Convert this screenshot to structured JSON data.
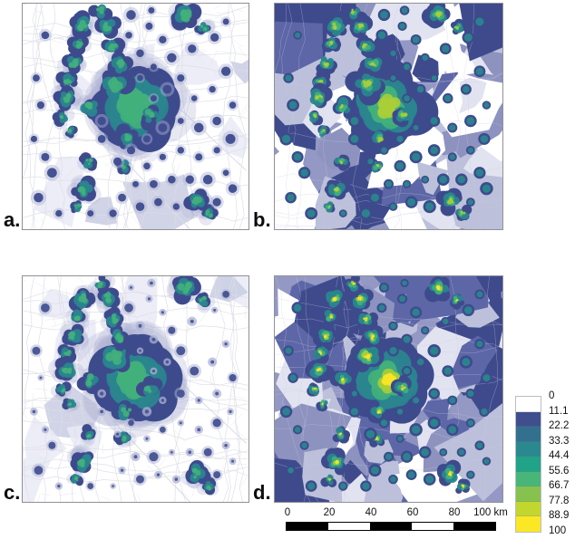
{
  "figure_type": "four-panel density map comparison",
  "panels": [
    {
      "id": "a",
      "label": "a.",
      "basemap": "roads",
      "point_style": "dark",
      "max_level": 3,
      "seed": 11
    },
    {
      "id": "b",
      "label": "b.",
      "basemap": "choropleth",
      "point_style": "ringed",
      "max_level": 4,
      "seed": 23
    },
    {
      "id": "c",
      "label": "c.",
      "basemap": "roads",
      "point_style": "faint",
      "max_level": 3,
      "seed": 37
    },
    {
      "id": "d",
      "label": "d.",
      "basemap": "choropleth",
      "point_style": "ringed",
      "max_level": 5,
      "seed": 47
    }
  ],
  "legend": {
    "labels": [
      "0",
      "11.1",
      "22.2",
      "33.3",
      "44.4",
      "55.6",
      "66.7",
      "77.8",
      "88.9",
      "100"
    ],
    "colors": [
      "#ffffff",
      "#3f4e8c",
      "#33708e",
      "#29898e",
      "#20a386",
      "#48b679",
      "#86c24d",
      "#c3d62e",
      "#fbe723"
    ]
  },
  "scalebar": {
    "tick_labels": [
      "0",
      "20",
      "40",
      "60",
      "80"
    ],
    "end_label": "100 km",
    "segment_colors": [
      "#000000",
      "#ffffff",
      "#000000",
      "#ffffff",
      "#000000"
    ]
  },
  "colors": {
    "halo": "#aeb2d4",
    "level1": "#3d4b8d",
    "level2": "#2a858e",
    "level3": "#43b07b",
    "level4": "#aace39",
    "level5": "#f6e626",
    "road": "#dcdde6",
    "poly_light": "#e9eaf4",
    "poly_mid": "#c9cce2",
    "choropleth_base": "#9398c4",
    "choropleth_palette": [
      "#ffffff",
      "#e2e3f0",
      "#bcc0da",
      "#8d92bf",
      "#5d66a6",
      "#3e4a8c"
    ],
    "tract_line": "#c9cbdf",
    "frame": "#909097"
  },
  "map_features": {
    "clusters_xyrn": [
      [
        0.5,
        0.46,
        0.16,
        34
      ],
      [
        0.405,
        0.355,
        0.07,
        9
      ],
      [
        0.565,
        0.495,
        0.05,
        5
      ],
      [
        0.46,
        0.6,
        0.05,
        5
      ],
      [
        0.3,
        0.46,
        0.05,
        6
      ],
      [
        0.43,
        0.27,
        0.05,
        7
      ],
      [
        0.4,
        0.19,
        0.045,
        6
      ],
      [
        0.375,
        0.1,
        0.05,
        8
      ],
      [
        0.345,
        0.032,
        0.04,
        5
      ],
      [
        0.265,
        0.1,
        0.05,
        8
      ],
      [
        0.245,
        0.18,
        0.04,
        6
      ],
      [
        0.225,
        0.265,
        0.045,
        7
      ],
      [
        0.2,
        0.34,
        0.04,
        6
      ],
      [
        0.195,
        0.415,
        0.05,
        8
      ],
      [
        0.175,
        0.5,
        0.035,
        5
      ],
      [
        0.21,
        0.565,
        0.03,
        4
      ],
      [
        0.72,
        0.05,
        0.055,
        9
      ],
      [
        0.8,
        0.105,
        0.035,
        5
      ],
      [
        0.77,
        0.875,
        0.05,
        8
      ],
      [
        0.825,
        0.93,
        0.035,
        5
      ],
      [
        0.27,
        0.825,
        0.05,
        8
      ],
      [
        0.29,
        0.7,
        0.035,
        5
      ],
      [
        0.24,
        0.9,
        0.03,
        4
      ],
      [
        0.45,
        0.72,
        0.035,
        5
      ]
    ],
    "points_xy": [
      [
        0.06,
        0.33
      ],
      [
        0.08,
        0.45
      ],
      [
        0.05,
        0.6
      ],
      [
        0.1,
        0.14
      ],
      [
        0.56,
        0.1
      ],
      [
        0.62,
        0.16
      ],
      [
        0.66,
        0.24
      ],
      [
        0.58,
        0.28
      ],
      [
        0.52,
        0.22
      ],
      [
        0.7,
        0.33
      ],
      [
        0.64,
        0.38
      ],
      [
        0.58,
        0.42
      ],
      [
        0.76,
        0.42
      ],
      [
        0.84,
        0.38
      ],
      [
        0.9,
        0.3
      ],
      [
        0.93,
        0.45
      ],
      [
        0.86,
        0.52
      ],
      [
        0.78,
        0.55
      ],
      [
        0.7,
        0.52
      ],
      [
        0.62,
        0.55
      ],
      [
        0.55,
        0.6
      ],
      [
        0.48,
        0.65
      ],
      [
        0.42,
        0.7
      ],
      [
        0.55,
        0.72
      ],
      [
        0.62,
        0.68
      ],
      [
        0.7,
        0.65
      ],
      [
        0.78,
        0.68
      ],
      [
        0.86,
        0.65
      ],
      [
        0.92,
        0.6
      ],
      [
        0.9,
        0.75
      ],
      [
        0.82,
        0.78
      ],
      [
        0.74,
        0.78
      ],
      [
        0.66,
        0.78
      ],
      [
        0.58,
        0.8
      ],
      [
        0.5,
        0.8
      ],
      [
        0.44,
        0.86
      ],
      [
        0.52,
        0.9
      ],
      [
        0.6,
        0.88
      ],
      [
        0.68,
        0.9
      ],
      [
        0.86,
        0.88
      ],
      [
        0.93,
        0.82
      ],
      [
        0.35,
        0.6
      ],
      [
        0.13,
        0.75
      ],
      [
        0.1,
        0.68
      ],
      [
        0.4,
        0.93
      ],
      [
        0.3,
        0.93
      ],
      [
        0.75,
        0.2
      ],
      [
        0.85,
        0.15
      ],
      [
        0.9,
        0.08
      ],
      [
        0.48,
        0.05
      ],
      [
        0.57,
        0.03
      ],
      [
        0.47,
        0.14
      ],
      [
        0.52,
        0.33
      ],
      [
        0.35,
        0.52
      ],
      [
        0.07,
        0.86
      ],
      [
        0.16,
        0.93
      ]
    ]
  }
}
